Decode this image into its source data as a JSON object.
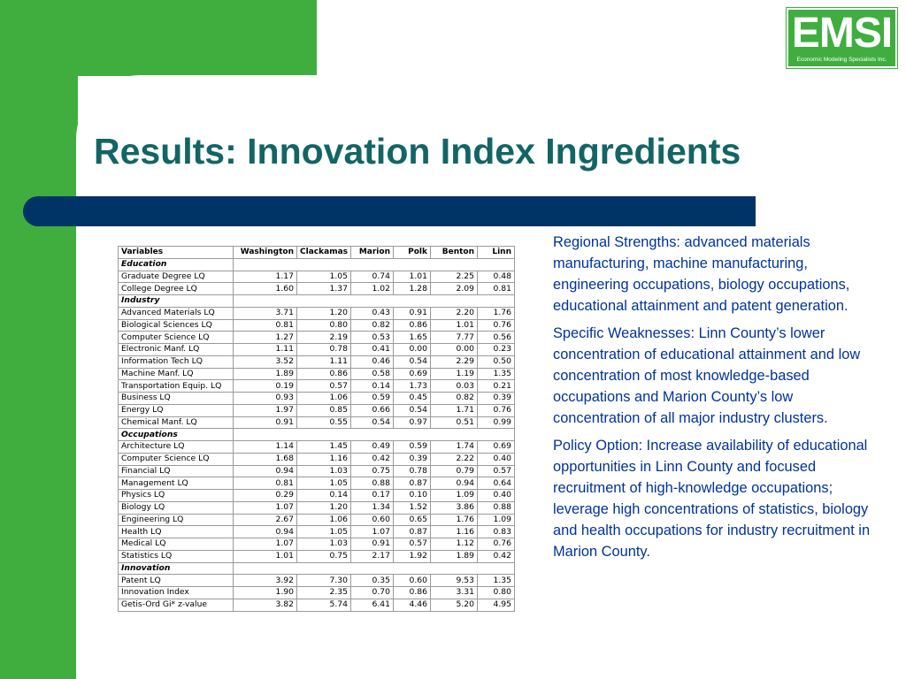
{
  "slide": {
    "title": "Results:  Innovation Index Ingredients",
    "logo": {
      "main": "EMSI",
      "sub": "Economic Modeling Specialists Inc."
    }
  },
  "table": {
    "headers": [
      "Variables",
      "Washington",
      "Clackamas",
      "Marion",
      "Polk",
      "Benton",
      "Linn"
    ],
    "groups": [
      {
        "name": "Education",
        "rows": [
          {
            "label": "Graduate Degree LQ",
            "values": [
              "1.17",
              "1.05",
              "0.74",
              "1.01",
              "2.25",
              "0.48"
            ]
          },
          {
            "label": "College Degree LQ",
            "values": [
              "1.60",
              "1.37",
              "1.02",
              "1.28",
              "2.09",
              "0.81"
            ]
          }
        ]
      },
      {
        "name": "Industry",
        "rows": [
          {
            "label": "Advanced Materials LQ",
            "values": [
              "3.71",
              "1.20",
              "0.43",
              "0.91",
              "2.20",
              "1.76"
            ]
          },
          {
            "label": "Biological Sciences LQ",
            "values": [
              "0.81",
              "0.80",
              "0.82",
              "0.86",
              "1.01",
              "0.76"
            ]
          },
          {
            "label": "Computer Science LQ",
            "values": [
              "1.27",
              "2.19",
              "0.53",
              "1.65",
              "7.77",
              "0.56"
            ]
          },
          {
            "label": "Electronic Manf. LQ",
            "values": [
              "1.11",
              "0.78",
              "0.41",
              "0.00",
              "0.00",
              "0.23"
            ]
          },
          {
            "label": "Information Tech LQ",
            "values": [
              "3.52",
              "1.11",
              "0.46",
              "0.54",
              "2.29",
              "0.50"
            ]
          },
          {
            "label": "Machine Manf. LQ",
            "values": [
              "1.89",
              "0.86",
              "0.58",
              "0.69",
              "1.19",
              "1.35"
            ]
          },
          {
            "label": "Transportation Equip. LQ",
            "values": [
              "0.19",
              "0.57",
              "0.14",
              "1.73",
              "0.03",
              "0.21"
            ]
          },
          {
            "label": "Business LQ",
            "values": [
              "0.93",
              "1.06",
              "0.59",
              "0.45",
              "0.82",
              "0.39"
            ]
          },
          {
            "label": "Energy LQ",
            "values": [
              "1.97",
              "0.85",
              "0.66",
              "0.54",
              "1.71",
              "0.76"
            ]
          },
          {
            "label": "Chemical Manf. LQ",
            "values": [
              "0.91",
              "0.55",
              "0.54",
              "0.97",
              "0.51",
              "0.99"
            ]
          }
        ]
      },
      {
        "name": "Occupations",
        "rows": [
          {
            "label": "Architecture LQ",
            "values": [
              "1.14",
              "1.45",
              "0.49",
              "0.59",
              "1.74",
              "0.69"
            ]
          },
          {
            "label": "Computer Science LQ",
            "values": [
              "1.68",
              "1.16",
              "0.42",
              "0.39",
              "2.22",
              "0.40"
            ]
          },
          {
            "label": "Financial LQ",
            "values": [
              "0.94",
              "1.03",
              "0.75",
              "0.78",
              "0.79",
              "0.57"
            ]
          },
          {
            "label": "Management LQ",
            "values": [
              "0.81",
              "1.05",
              "0.88",
              "0.87",
              "0.94",
              "0.64"
            ]
          },
          {
            "label": "Physics LQ",
            "values": [
              "0.29",
              "0.14",
              "0.17",
              "0.10",
              "1.09",
              "0.40"
            ]
          },
          {
            "label": "Biology LQ",
            "values": [
              "1.07",
              "1.20",
              "1.34",
              "1.52",
              "3.86",
              "0.88"
            ]
          },
          {
            "label": "Engineering LQ",
            "values": [
              "2.67",
              "1.06",
              "0.60",
              "0.65",
              "1.76",
              "1.09"
            ]
          },
          {
            "label": "Health LQ",
            "values": [
              "0.94",
              "1.05",
              "1.07",
              "0.87",
              "1.16",
              "0.83"
            ]
          },
          {
            "label": "Medical LQ",
            "values": [
              "1.07",
              "1.03",
              "0.91",
              "0.57",
              "1.12",
              "0.76"
            ]
          },
          {
            "label": "Statistics LQ",
            "values": [
              "1.01",
              "0.75",
              "2.17",
              "1.92",
              "1.89",
              "0.42"
            ]
          }
        ]
      },
      {
        "name": "Innovation",
        "rows": [
          {
            "label": "Patent LQ",
            "values": [
              "3.92",
              "7.30",
              "0.35",
              "0.60",
              "9.53",
              "1.35"
            ]
          },
          {
            "label": "Innovation Index",
            "values": [
              "1.90",
              "2.35",
              "0.70",
              "0.86",
              "3.31",
              "0.80"
            ]
          },
          {
            "label": "Getis-Ord Gi* z-value",
            "values": [
              "3.82",
              "5.74",
              "6.41",
              "4.46",
              "5.20",
              "4.95"
            ]
          }
        ]
      }
    ]
  },
  "text": {
    "strengths": "Regional Strengths:  advanced materials manufacturing, machine manufacturing, engineering occupations, biology occupations, educational attainment and patent generation.",
    "weaknesses": "Specific Weaknesses:  Linn County’s lower concentration of educational attainment and low concentration of most knowledge-based occupations and Marion County’s low concentration of all major industry clusters.",
    "policy": "Policy Option:  Increase availability of educational opportunities in Linn County and focused recruitment of high-knowledge occupations; leverage high concentrations of statistics, biology and health occupations for industry recruitment in Marion County."
  },
  "colors": {
    "green": "#3fae3f",
    "title": "#136565",
    "bar": "#003466",
    "body_text": "#003399"
  }
}
